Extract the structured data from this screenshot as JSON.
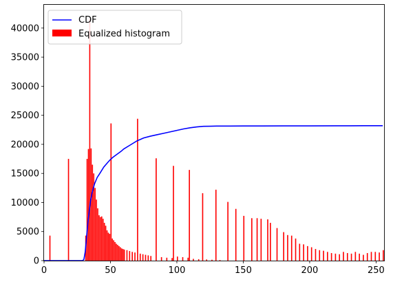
{
  "chart_data": {
    "type": "bar",
    "title": "",
    "xlabel": "",
    "ylabel": "",
    "xlim": [
      0,
      256
    ],
    "ylim": [
      0,
      44000
    ],
    "grid": false,
    "legend_placement": "top-left",
    "x_ticks": [
      "0",
      "50",
      "100",
      "150",
      "200",
      "250"
    ],
    "y_ticks": [
      "0",
      "5000",
      "10000",
      "15000",
      "20000",
      "25000",
      "30000",
      "35000",
      "40000"
    ],
    "legend": [
      {
        "label": "CDF",
        "kind": "line",
        "color": "#0000ff"
      },
      {
        "label": "Equalized histogram",
        "kind": "bar",
        "color": "#ff0000"
      }
    ],
    "series": [
      {
        "name": "Equalized histogram",
        "kind": "bar",
        "color": "#ff0000",
        "bin_width": 1,
        "x": [
          4,
          18,
          31,
          32,
          33,
          34,
          35,
          36,
          37,
          38,
          39,
          40,
          41,
          42,
          43,
          44,
          45,
          46,
          47,
          48,
          49,
          50,
          51,
          52,
          53,
          54,
          55,
          56,
          57,
          58,
          59,
          60,
          62,
          64,
          66,
          68,
          70,
          72,
          74,
          76,
          78,
          80,
          84,
          88,
          92,
          96,
          97,
          100,
          104,
          108,
          109,
          112,
          116,
          119,
          122,
          126,
          129,
          132,
          138,
          144,
          150,
          156,
          160,
          163,
          168,
          170,
          175,
          180,
          183,
          186,
          189,
          192,
          195,
          198,
          201,
          204,
          207,
          210,
          213,
          216,
          219,
          222,
          225,
          228,
          231,
          234,
          237,
          240,
          243,
          246,
          249,
          252,
          255
        ],
        "values": [
          4300,
          17500,
          4300,
          17500,
          19200,
          41500,
          19300,
          16500,
          15000,
          12500,
          10500,
          9000,
          7800,
          7500,
          7600,
          7200,
          6500,
          6000,
          5200,
          4800,
          4600,
          23600,
          3800,
          3500,
          3200,
          2900,
          2700,
          2500,
          2300,
          2100,
          2000,
          1900,
          1800,
          1650,
          1500,
          1400,
          24400,
          1200,
          1100,
          1000,
          900,
          800,
          17600,
          600,
          500,
          450,
          16300,
          700,
          600,
          500,
          15600,
          300,
          250,
          11600,
          200,
          150,
          12200,
          100,
          10100,
          8900,
          7700,
          7300,
          7300,
          7200,
          7100,
          6500,
          5600,
          4900,
          4400,
          4300,
          3800,
          2900,
          2800,
          2500,
          2300,
          2000,
          1800,
          1700,
          1500,
          1300,
          1200,
          1100,
          1500,
          1300,
          1200,
          1500,
          1200,
          1000,
          1300,
          1500,
          1500,
          1400,
          1800
        ]
      },
      {
        "name": "CDF",
        "kind": "line",
        "color": "#0000ff",
        "x": [
          0,
          29,
          30,
          31,
          32,
          33,
          34,
          35,
          36,
          37,
          38,
          40,
          42,
          45,
          48,
          50,
          52,
          55,
          58,
          60,
          65,
          70,
          75,
          80,
          85,
          90,
          95,
          100,
          105,
          110,
          115,
          120,
          125,
          130,
          140,
          150,
          160,
          180,
          200,
          220,
          240,
          255
        ],
        "values": [
          0,
          0,
          200,
          1500,
          4000,
          6500,
          8500,
          10300,
          11500,
          12400,
          13200,
          14300,
          15000,
          16100,
          16900,
          17400,
          17800,
          18300,
          18800,
          19200,
          19900,
          20600,
          21100,
          21400,
          21650,
          21900,
          22150,
          22400,
          22650,
          22850,
          23000,
          23100,
          23120,
          23140,
          23150,
          23160,
          23160,
          23170,
          23180,
          23190,
          23200,
          23200
        ]
      }
    ]
  }
}
